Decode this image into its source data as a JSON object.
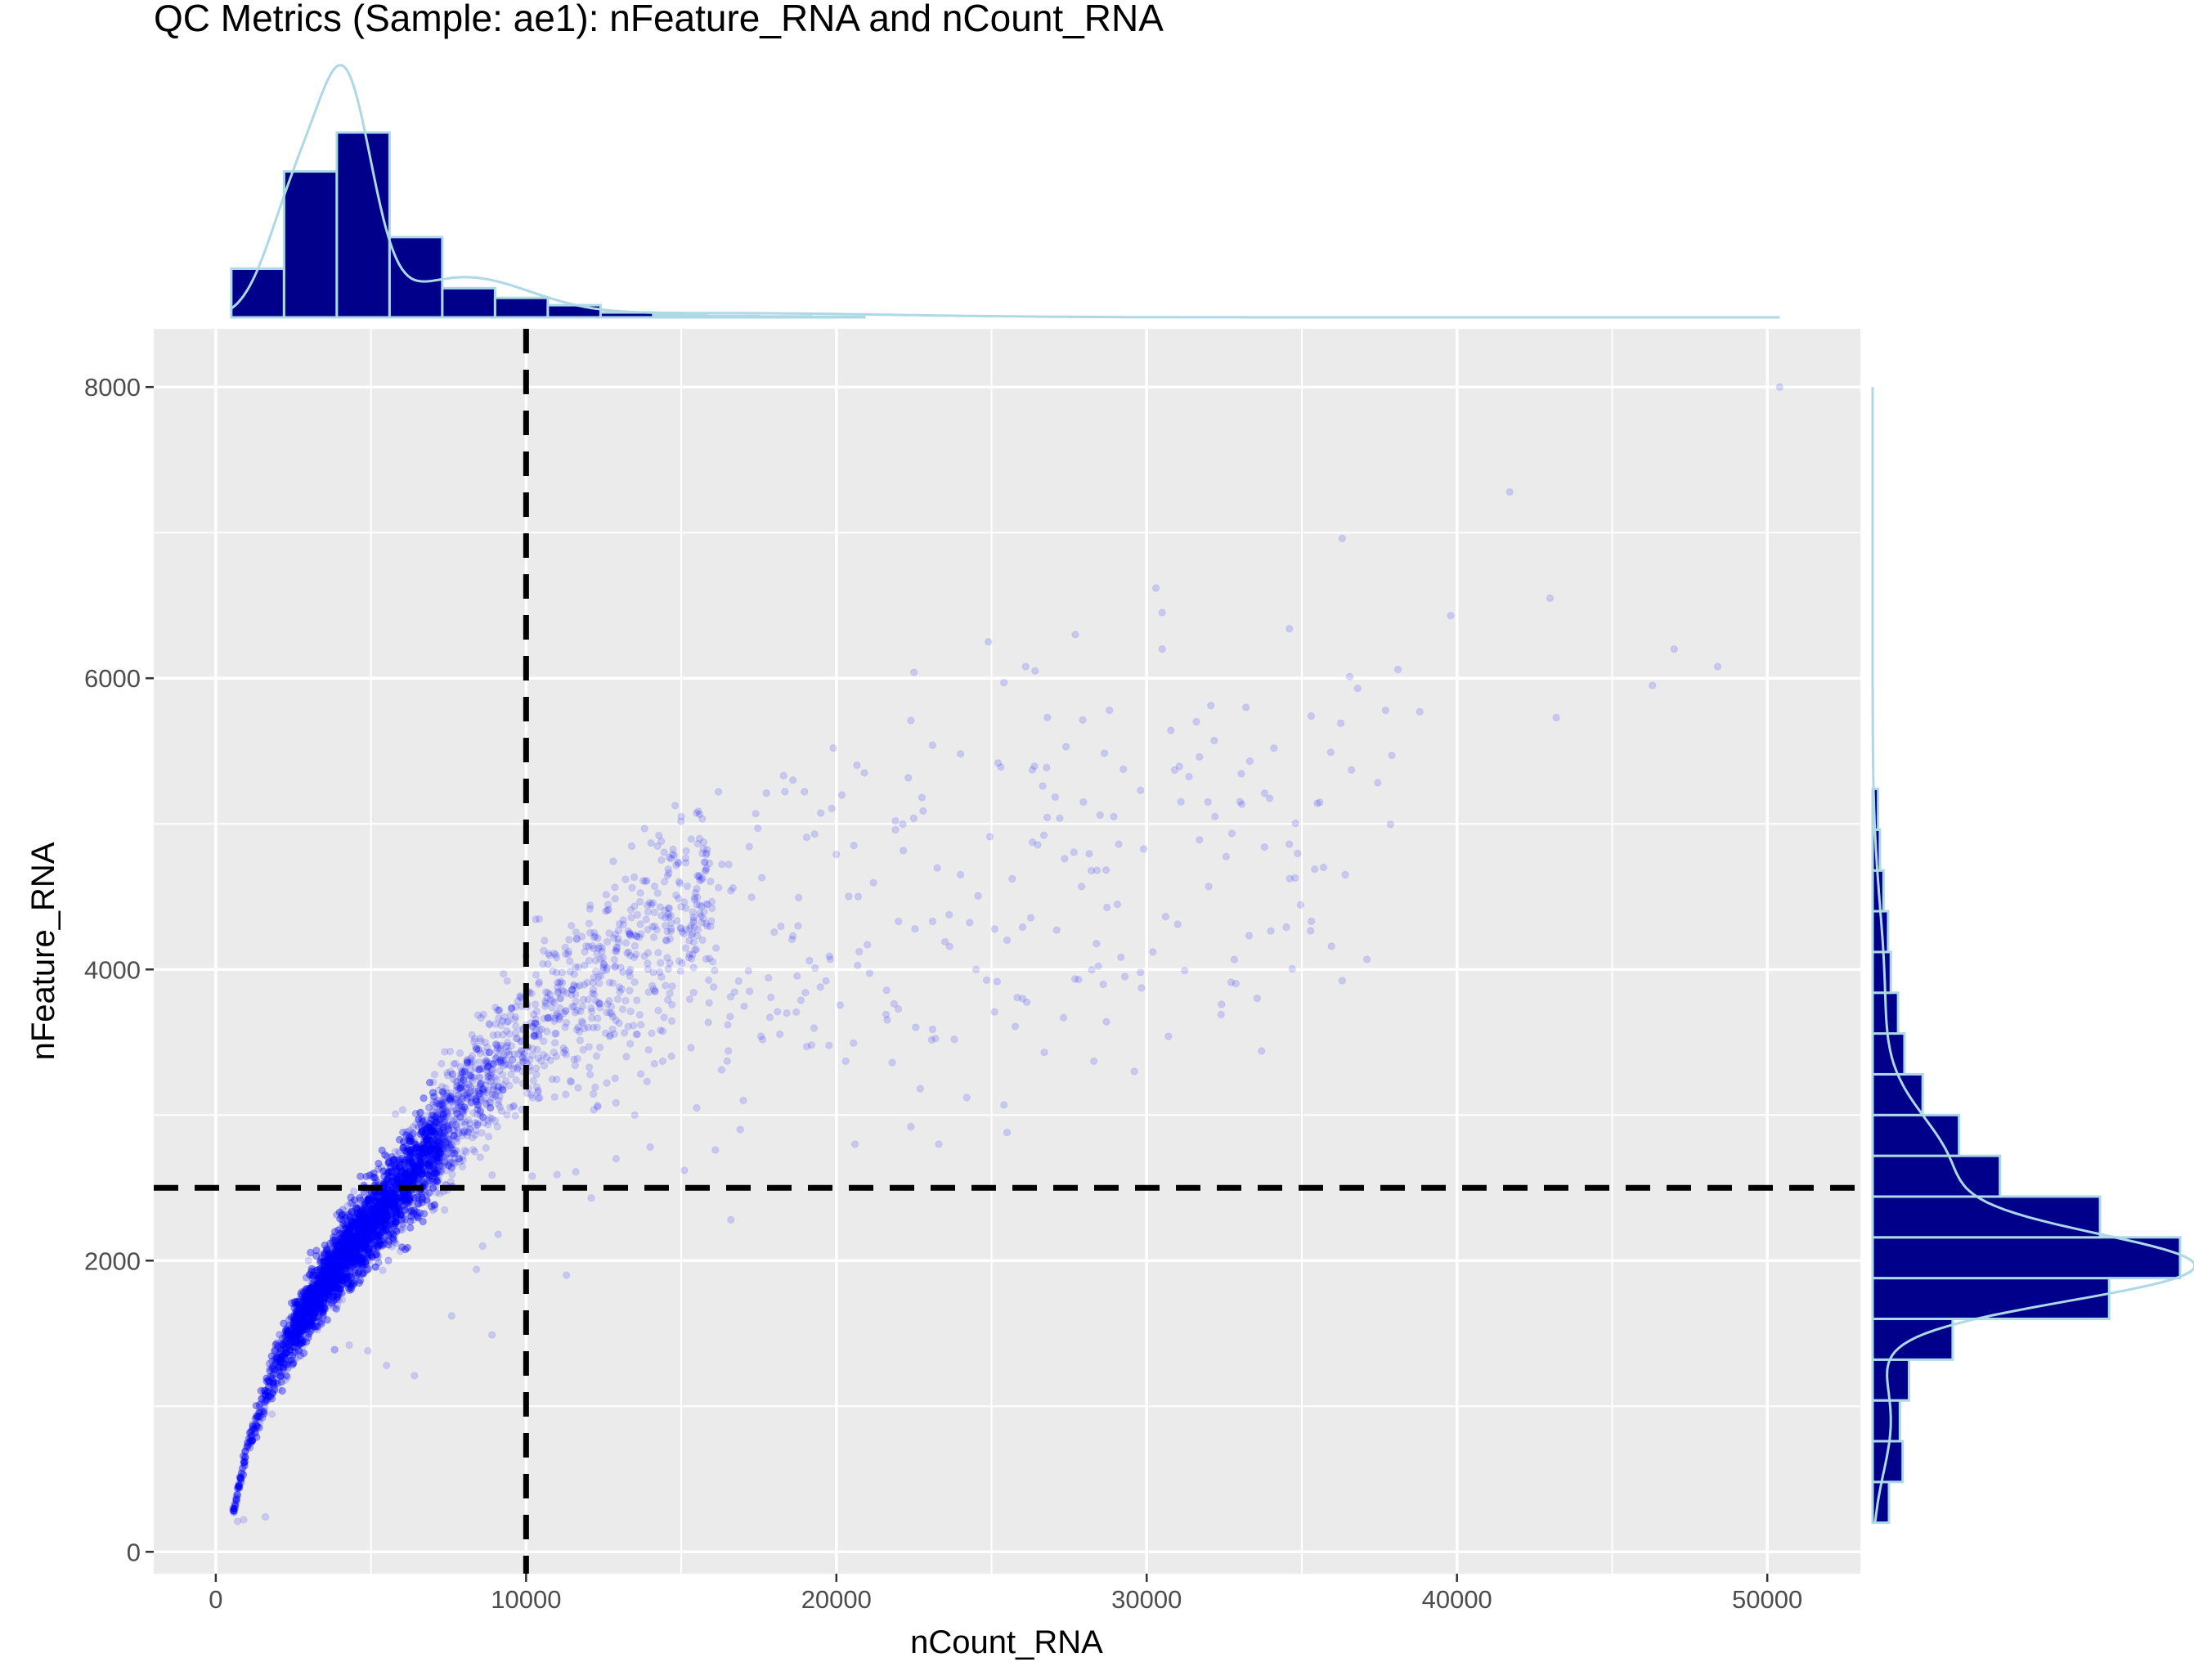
{
  "chart_data": {
    "type": "scatter",
    "title": "QC Metrics (Sample: ae1): nFeature_RNA and nCount_RNA",
    "xlabel": "nCount_RNA",
    "ylabel": "nFeature_RNA",
    "xlim": [
      -2000,
      53000
    ],
    "ylim": [
      -150,
      8400
    ],
    "x_ticks": [
      0,
      10000,
      20000,
      30000,
      40000,
      50000
    ],
    "x_tick_labels": [
      "0",
      "10000",
      "20000",
      "30000",
      "40000",
      "50000"
    ],
    "y_ticks": [
      0,
      2000,
      4000,
      6000,
      8000
    ],
    "y_tick_labels": [
      "0",
      "2000",
      "4000",
      "6000",
      "8000"
    ],
    "grid": true,
    "panel_background": "#ebebeb",
    "point_color": "#0000ff",
    "point_alpha": 0.15,
    "threshold_lines": {
      "x": 10000,
      "y": 2500,
      "style": "dashed",
      "color": "#000000"
    },
    "trend_points": [
      [
        600,
        300
      ],
      [
        1000,
        700
      ],
      [
        2000,
        1300
      ],
      [
        3000,
        1700
      ],
      [
        4000,
        2000
      ],
      [
        5000,
        2250
      ],
      [
        6000,
        2500
      ],
      [
        7000,
        2800
      ],
      [
        8000,
        3050
      ],
      [
        9000,
        3300
      ],
      [
        10000,
        3500
      ],
      [
        12000,
        3900
      ],
      [
        14000,
        4250
      ],
      [
        17000,
        4650
      ]
    ],
    "outlier_points": [
      [
        50400,
        8000
      ],
      [
        41700,
        7280
      ],
      [
        36300,
        6960
      ],
      [
        43000,
        6550
      ],
      [
        30300,
        6620
      ],
      [
        30500,
        6450
      ],
      [
        39800,
        6430
      ],
      [
        30500,
        6200
      ],
      [
        34600,
        6340
      ],
      [
        47000,
        6200
      ],
      [
        48400,
        6080
      ],
      [
        46300,
        5950
      ],
      [
        25400,
        5970
      ],
      [
        26100,
        6080
      ],
      [
        26400,
        6050
      ],
      [
        22500,
        6040
      ],
      [
        24900,
        6250
      ],
      [
        27700,
        6300
      ],
      [
        28800,
        5780
      ],
      [
        33200,
        5800
      ],
      [
        35300,
        5740
      ],
      [
        36800,
        5930
      ],
      [
        38100,
        6060
      ],
      [
        38800,
        5770
      ],
      [
        43200,
        5730
      ],
      [
        37900,
        5470
      ],
      [
        37700,
        5780
      ],
      [
        29800,
        5230
      ],
      [
        31700,
        5460
      ],
      [
        30900,
        5370
      ],
      [
        32200,
        5050
      ],
      [
        35500,
        5140
      ],
      [
        36600,
        5370
      ],
      [
        34100,
        5520
      ],
      [
        33800,
        5210
      ],
      [
        34600,
        4860
      ],
      [
        36400,
        4650
      ],
      [
        33800,
        4840
      ],
      [
        31700,
        4890
      ],
      [
        32000,
        4570
      ],
      [
        34500,
        4290
      ],
      [
        31000,
        4310
      ],
      [
        29800,
        3980
      ],
      [
        25500,
        4200
      ],
      [
        24500,
        4000
      ],
      [
        23800,
        3520
      ],
      [
        25400,
        3070
      ],
      [
        25500,
        2880
      ],
      [
        22400,
        2920
      ],
      [
        20600,
        2800
      ],
      [
        20300,
        3370
      ],
      [
        21600,
        3690
      ],
      [
        20000,
        4790
      ],
      [
        19300,
        4930
      ],
      [
        19900,
        5520
      ],
      [
        17400,
        5070
      ],
      [
        16200,
        5220
      ],
      [
        15000,
        5050
      ],
      [
        18600,
        5300
      ],
      [
        20900,
        5350
      ],
      [
        21900,
        5020
      ],
      [
        22400,
        5710
      ],
      [
        23100,
        5540
      ],
      [
        24000,
        5480
      ],
      [
        25300,
        5390
      ],
      [
        26800,
        5730
      ],
      [
        27400,
        5530
      ],
      [
        28500,
        5060
      ],
      [
        29100,
        4860
      ],
      [
        27900,
        4570
      ],
      [
        27100,
        4270
      ],
      [
        26000,
        4290
      ],
      [
        24000,
        4650
      ],
      [
        23100,
        4330
      ],
      [
        22000,
        4330
      ],
      [
        21000,
        4170
      ],
      [
        19800,
        4070
      ],
      [
        18600,
        4230
      ],
      [
        17600,
        4630
      ],
      [
        16600,
        4540
      ],
      [
        15600,
        4610
      ],
      [
        14600,
        4360
      ],
      [
        14100,
        3980
      ],
      [
        13700,
        3620
      ],
      [
        14400,
        3370
      ],
      [
        13900,
        3230
      ],
      [
        15500,
        3050
      ],
      [
        16300,
        3310
      ],
      [
        17000,
        3100
      ],
      [
        16100,
        2760
      ],
      [
        16600,
        2280
      ],
      [
        16900,
        2900
      ],
      [
        15100,
        2620
      ],
      [
        14000,
        2780
      ],
      [
        12100,
        2430
      ],
      [
        11600,
        2610
      ],
      [
        11000,
        2590
      ],
      [
        10200,
        2580
      ],
      [
        11300,
        1900
      ],
      [
        9100,
        2180
      ],
      [
        8600,
        2100
      ],
      [
        8400,
        1940
      ],
      [
        8900,
        1490
      ],
      [
        7600,
        1620
      ],
      [
        6400,
        1210
      ],
      [
        5500,
        1280
      ],
      [
        4900,
        1380
      ],
      [
        4300,
        1420
      ],
      [
        900,
        220
      ],
      [
        1600,
        240
      ],
      [
        700,
        210
      ],
      [
        18100,
        3710
      ],
      [
        19200,
        3480
      ],
      [
        21800,
        3360
      ],
      [
        22700,
        3180
      ],
      [
        24200,
        3120
      ],
      [
        26000,
        3800
      ],
      [
        27800,
        3930
      ],
      [
        28700,
        3640
      ],
      [
        28300,
        3370
      ],
      [
        29600,
        3300
      ],
      [
        30700,
        3540
      ],
      [
        32400,
        3690
      ],
      [
        33700,
        3440
      ],
      [
        12600,
        3220
      ],
      [
        12900,
        2700
      ],
      [
        15900,
        3770
      ],
      [
        17200,
        3850
      ],
      [
        18400,
        3700
      ],
      [
        23300,
        2800
      ],
      [
        26700,
        3430
      ],
      [
        28400,
        4680
      ],
      [
        30200,
        4120
      ],
      [
        35700,
        4700
      ],
      [
        23500,
        4190
      ],
      [
        20700,
        4500
      ],
      [
        16500,
        3620
      ],
      [
        13500,
        3000
      ]
    ],
    "top_marginal_histogram": {
      "variable": "nCount_RNA",
      "bin_edges": [
        500,
        2200,
        3900,
        5600,
        7300,
        9000,
        10700,
        12400,
        14100,
        15800,
        17500,
        19200,
        20900
      ],
      "counts": [
        100,
        300,
        380,
        165,
        60,
        40,
        25,
        10,
        5,
        3,
        2,
        1
      ],
      "fill": "#00008b",
      "outline": "#add8e6",
      "density_line_color": "#add8e6"
    },
    "right_marginal_histogram": {
      "variable": "nFeature_RNA",
      "bin_edges": [
        200,
        480,
        760,
        1040,
        1320,
        1600,
        1880,
        2160,
        2440,
        2720,
        3000,
        3280,
        3560,
        3840,
        4120,
        4400,
        4680,
        4960,
        5240
      ],
      "counts": [
        18,
        33,
        30,
        40,
        88,
        260,
        338,
        250,
        140,
        95,
        55,
        35,
        28,
        20,
        17,
        12,
        8,
        6
      ],
      "fill": "#00008b",
      "outline": "#add8e6",
      "density_line_color": "#add8e6"
    }
  }
}
